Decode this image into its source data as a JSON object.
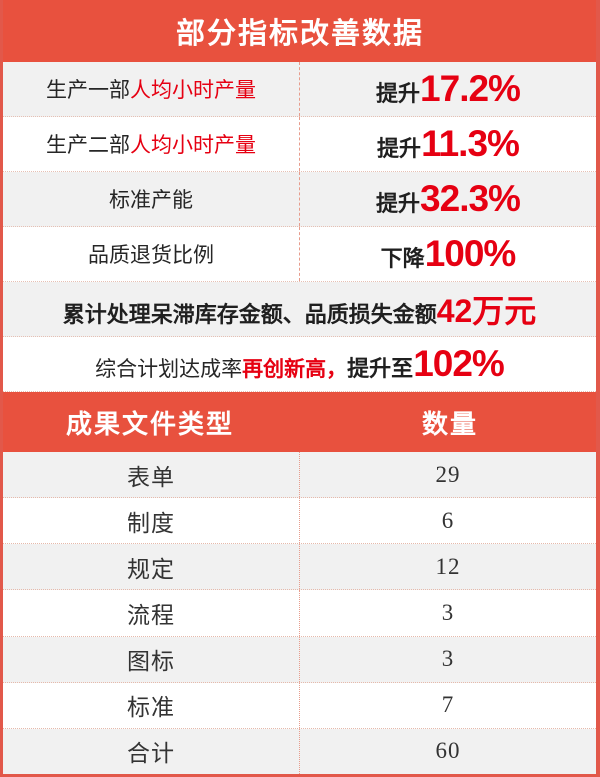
{
  "colors": {
    "banner_red": "#e8513e",
    "accent_red": "#e60012",
    "row_gray": "#f1f1f1",
    "text_dark": "#262626",
    "divider_salmon": "#e79c8c"
  },
  "banner": {
    "title": "部分指标改善数据"
  },
  "metrics": [
    {
      "label_plain": "生产一部",
      "label_red": "人均小时产量",
      "prefix": "提升",
      "value": "17.2%"
    },
    {
      "label_plain": "生产二部",
      "label_red": "人均小时产量",
      "prefix": "提升",
      "value": "11.3%"
    },
    {
      "label_plain": "标准产能",
      "label_red": "",
      "prefix": "提升",
      "value": "32.3%"
    },
    {
      "label_plain": "品质退货比例",
      "label_red": "",
      "prefix": "下降",
      "value": "100%"
    }
  ],
  "summary_rows": {
    "row5": {
      "text": "累计处理呆滞库存金额、品质损失金额",
      "value": "42万元"
    },
    "row6": {
      "plain": "综合计划达成率",
      "highlight": "再创新高，",
      "bold": "提升至",
      "value": "102%"
    }
  },
  "table": {
    "header_type": "成果文件类型",
    "header_count": "数量",
    "rows": [
      {
        "type": "表单",
        "count": "29"
      },
      {
        "type": "制度",
        "count": "6"
      },
      {
        "type": "规定",
        "count": "12"
      },
      {
        "type": "流程",
        "count": "3"
      },
      {
        "type": "图标",
        "count": "3"
      },
      {
        "type": "标准",
        "count": "7"
      },
      {
        "type": "合计",
        "count": "60"
      }
    ]
  },
  "chart_data": [
    {
      "type": "table",
      "title": "部分指标改善数据",
      "categories": [
        "生产一部人均小时产量",
        "生产二部人均小时产量",
        "标准产能",
        "品质退货比例",
        "累计处理呆滞库存金额、品质损失金额",
        "综合计划达成率"
      ],
      "values": [
        "提升17.2%",
        "提升11.3%",
        "提升32.3%",
        "下降100%",
        "42万元",
        "提升至102%"
      ]
    },
    {
      "type": "table",
      "title": "成果文件类型 / 数量",
      "categories": [
        "表单",
        "制度",
        "规定",
        "流程",
        "图标",
        "标准",
        "合计"
      ],
      "values": [
        29,
        6,
        12,
        3,
        3,
        7,
        60
      ]
    }
  ]
}
